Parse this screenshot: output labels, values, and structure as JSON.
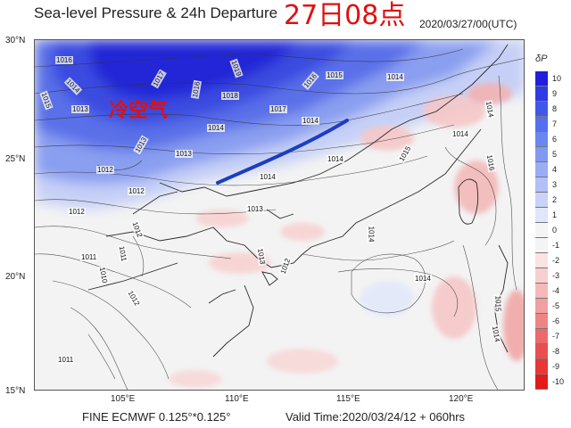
{
  "header": {
    "title": "Sea-level Pressure & 24h Departure",
    "date_stamp": "27日08点",
    "valid_utc": "2020/03/27/00(UTC)"
  },
  "footer": {
    "model": "FINE ECMWF 0.125°*0.125°",
    "valid_time": "Valid Time:2020/03/24/12 + 060hrs"
  },
  "annotation": {
    "label": "冷空气",
    "color": "#e01010",
    "arrow_color": "#1c3fbf"
  },
  "axes": {
    "lat_labels": [
      "30°N",
      "25°N",
      "20°N",
      "15°N"
    ],
    "lon_labels": [
      "105°E",
      "110°E",
      "115°E",
      "120°E"
    ]
  },
  "colorbar": {
    "title": "δP",
    "levels": [
      "10",
      "9",
      "8",
      "7",
      "6",
      "5",
      "4",
      "3",
      "2",
      "1",
      "0",
      "-1",
      "-2",
      "-3",
      "-4",
      "-5",
      "-6",
      "-7",
      "-8",
      "-9",
      "-10"
    ],
    "colors": [
      "#1f1fdc",
      "#2f3be6",
      "#4157ea",
      "#5470ee",
      "#6a86f0",
      "#8199f2",
      "#99adf4",
      "#b1c0f6",
      "#c9d3f8",
      "#e0e7fa",
      "#f4f4f4",
      "#f4f4f4",
      "#fbe3e3",
      "#f8cfcf",
      "#f4b9b9",
      "#f19f9f",
      "#ee8585",
      "#ec6a6a",
      "#ea4f4f",
      "#e83535",
      "#e41a1a"
    ]
  },
  "isobar_labels": [
    {
      "text": "1016"
    },
    {
      "text": "1014"
    },
    {
      "text": "1015"
    },
    {
      "text": "1013"
    },
    {
      "text": "1017"
    },
    {
      "text": "1016"
    },
    {
      "text": "1019"
    },
    {
      "text": "1018"
    },
    {
      "text": "1016"
    },
    {
      "text": "1015"
    },
    {
      "text": "1014"
    },
    {
      "text": "1017"
    },
    {
      "text": "1014"
    },
    {
      "text": "1014"
    },
    {
      "text": "1013"
    },
    {
      "text": "1012"
    },
    {
      "text": "1013"
    },
    {
      "text": "1012"
    },
    {
      "text": "1014"
    },
    {
      "text": "1014"
    },
    {
      "text": "1013"
    },
    {
      "text": "1012"
    },
    {
      "text": "1011"
    },
    {
      "text": "1012"
    },
    {
      "text": "1011"
    },
    {
      "text": "1010"
    },
    {
      "text": "1012"
    },
    {
      "text": "1011"
    },
    {
      "text": "1013"
    },
    {
      "text": "1012"
    },
    {
      "text": "1014"
    },
    {
      "text": "1014"
    },
    {
      "text": "1015"
    },
    {
      "text": "1016"
    },
    {
      "text": "1014"
    },
    {
      "text": "1015"
    },
    {
      "text": "1014"
    }
  ]
}
